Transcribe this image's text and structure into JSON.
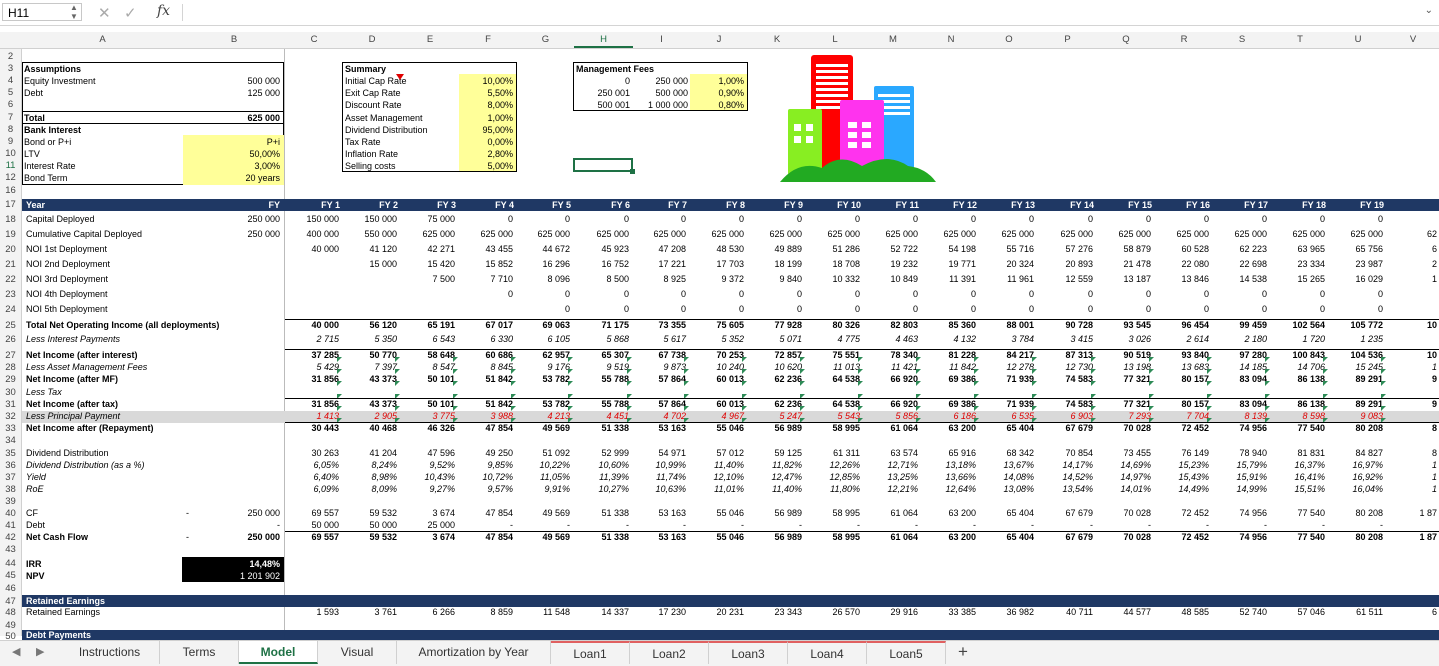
{
  "formula_bar": {
    "name_box": "H11",
    "fx": "fx"
  },
  "columns": [
    "A",
    "B",
    "C",
    "D",
    "E",
    "F",
    "G",
    "H",
    "I",
    "J",
    "K",
    "L",
    "M",
    "N",
    "O",
    "P",
    "Q",
    "R",
    "S",
    "T",
    "U",
    "V"
  ],
  "rows": [
    "2",
    "3",
    "4",
    "5",
    "6",
    "7",
    "8",
    "9",
    "10",
    "11",
    "12",
    "16",
    "17",
    "18",
    "19",
    "20",
    "21",
    "22",
    "23",
    "24",
    "25",
    "26",
    "27",
    "28",
    "29",
    "30",
    "31",
    "32",
    "33",
    "34",
    "35",
    "36",
    "37",
    "38",
    "39",
    "40",
    "41",
    "42",
    "43",
    "44",
    "45",
    "46",
    "47",
    "48",
    "49",
    "50"
  ],
  "assumptions": {
    "title": "Assumptions",
    "equity_label": "Equity Investment",
    "equity": "500 000",
    "debt_label": "Debt",
    "debt": "125 000",
    "total_label": "Total",
    "total": "625 000",
    "bank_label": "Bank Interest",
    "bond_label": "Bond or P+i",
    "bond": "P+i",
    "ltv_label": "LTV",
    "ltv": "50,00%",
    "rate_label": "Interest Rate",
    "rate": "3,00%",
    "term_label": "Bond Term",
    "term": "20 years"
  },
  "summary": {
    "title": "Summary",
    "items": [
      [
        "Initial Cap Rate",
        "10,00%"
      ],
      [
        "Exit Cap Rate",
        "5,50%"
      ],
      [
        "Discount Rate",
        "8,00%"
      ],
      [
        "Asset Management",
        "1,00%"
      ],
      [
        "Dividend Distribution",
        "95,00%"
      ],
      [
        "Tax Rate",
        "0,00%"
      ],
      [
        "Inflation Rate",
        "2,80%"
      ],
      [
        "Selling costs",
        "5,00%"
      ]
    ]
  },
  "management_fees": {
    "title": "Management Fees",
    "rows": [
      [
        "0",
        "250 000",
        "1,00%"
      ],
      [
        "250 001",
        "500 000",
        "0,90%"
      ],
      [
        "500 001",
        "1 000 000",
        "0,80%"
      ]
    ]
  },
  "year_header": {
    "label": "Year",
    "col_b": "FY",
    "years": [
      "FY 1",
      "FY 2",
      "FY 3",
      "FY 4",
      "FY 5",
      "FY 6",
      "FY 7",
      "FY 8",
      "FY 9",
      "FY 10",
      "FY 11",
      "FY 12",
      "FY 13",
      "FY 14",
      "FY 15",
      "FY 16",
      "FY 17",
      "FY 18",
      "FY 19"
    ]
  },
  "table": [
    {
      "row": "18",
      "label": "Capital Deployed",
      "b": "250 000",
      "v": [
        "150 000",
        "150 000",
        "75 000",
        "0",
        "0",
        "0",
        "0",
        "0",
        "0",
        "0",
        "0",
        "0",
        "0",
        "0",
        "0",
        "0",
        "0",
        "0",
        "0"
      ]
    },
    {
      "row": "19",
      "label": "Cumulative Capital Deployed",
      "b": "250 000",
      "v": [
        "400 000",
        "550 000",
        "625 000",
        "625 000",
        "625 000",
        "625 000",
        "625 000",
        "625 000",
        "625 000",
        "625 000",
        "625 000",
        "625 000",
        "625 000",
        "625 000",
        "625 000",
        "625 000",
        "625 000",
        "625 000",
        "625 000"
      ],
      "tail": "62"
    },
    {
      "row": "20",
      "label": "NOI 1st Deployment",
      "b": "",
      "v": [
        "40 000",
        "41 120",
        "42 271",
        "43 455",
        "44 672",
        "45 923",
        "47 208",
        "48 530",
        "49 889",
        "51 286",
        "52 722",
        "54 198",
        "55 716",
        "57 276",
        "58 879",
        "60 528",
        "62 223",
        "63 965",
        "65 756"
      ],
      "tail": "6"
    },
    {
      "row": "21",
      "label": "NOI 2nd Deployment",
      "b": "",
      "v": [
        "",
        "15 000",
        "15 420",
        "15 852",
        "16 296",
        "16 752",
        "17 221",
        "17 703",
        "18 199",
        "18 708",
        "19 232",
        "19 771",
        "20 324",
        "20 893",
        "21 478",
        "22 080",
        "22 698",
        "23 334",
        "23 987"
      ],
      "tail": "2"
    },
    {
      "row": "22",
      "label": "NOI 3rd Deployment",
      "b": "",
      "v": [
        "",
        "",
        "7 500",
        "7 710",
        "8 096",
        "8 500",
        "8 925",
        "9 372",
        "9 840",
        "10 332",
        "10 849",
        "11 391",
        "11 961",
        "12 559",
        "13 187",
        "13 846",
        "14 538",
        "15 265",
        "16 029"
      ],
      "tail": "1"
    },
    {
      "row": "23",
      "label": "NOI 4th Deployment",
      "b": "",
      "v": [
        "",
        "",
        "",
        "0",
        "0",
        "0",
        "0",
        "0",
        "0",
        "0",
        "0",
        "0",
        "0",
        "0",
        "0",
        "0",
        "0",
        "0",
        "0"
      ]
    },
    {
      "row": "24",
      "label": "NOI 5th Deployment",
      "b": "",
      "v": [
        "",
        "",
        "",
        "",
        "0",
        "0",
        "0",
        "0",
        "0",
        "0",
        "0",
        "0",
        "0",
        "0",
        "0",
        "0",
        "0",
        "0",
        "0"
      ]
    },
    {
      "row": "25",
      "label": "Total Net Operating Income (all deployments)",
      "b": "",
      "bold": true,
      "v": [
        "40 000",
        "56 120",
        "65 191",
        "67 017",
        "69 063",
        "71 175",
        "73 355",
        "75 605",
        "77 928",
        "80 326",
        "82 803",
        "85 360",
        "88 001",
        "90 728",
        "93 545",
        "96 454",
        "99 459",
        "102 564",
        "105 772"
      ],
      "tail": "10"
    },
    {
      "row": "26",
      "label": "Less Interest Payments",
      "b": "",
      "italic": true,
      "v": [
        "2 715",
        "5 350",
        "6 543",
        "6 330",
        "6 105",
        "5 868",
        "5 617",
        "5 352",
        "5 071",
        "4 775",
        "4 463",
        "4 132",
        "3 784",
        "3 415",
        "3 026",
        "2 614",
        "2 180",
        "1 720",
        "1 235"
      ]
    },
    {
      "row": "27",
      "label": "Net Income (after interest)",
      "b": "",
      "bold": true,
      "v": [
        "37 285",
        "50 770",
        "58 648",
        "60 686",
        "62 957",
        "65 307",
        "67 738",
        "70 253",
        "72 857",
        "75 551",
        "78 340",
        "81 228",
        "84 217",
        "87 313",
        "90 519",
        "93 840",
        "97 280",
        "100 843",
        "104 536"
      ],
      "tail": "10"
    },
    {
      "row": "28",
      "label": "Less Asset Management Fees",
      "b": "",
      "italic": true,
      "v": [
        "5 429",
        "7 397",
        "8 547",
        "8 845",
        "9 176",
        "9 519",
        "9 873",
        "10 240",
        "10 620",
        "11 013",
        "11 421",
        "11 842",
        "12 278",
        "12 730",
        "13 198",
        "13 683",
        "14 185",
        "14 706",
        "15 245"
      ],
      "tail": "1"
    },
    {
      "row": "29",
      "label": "Net Income (after MF)",
      "b": "",
      "bold": true,
      "v": [
        "31 856",
        "43 373",
        "50 101",
        "51 842",
        "53 782",
        "55 788",
        "57 864",
        "60 013",
        "62 236",
        "64 538",
        "66 920",
        "69 386",
        "71 939",
        "74 583",
        "77 321",
        "80 157",
        "83 094",
        "86 138",
        "89 291"
      ],
      "tail": "9"
    },
    {
      "row": "30",
      "label": "Less Tax",
      "b": "",
      "italic": true,
      "v": [
        "",
        "",
        "",
        "",
        "",
        "",
        "",
        "",
        "",
        "",
        "",
        "",
        "",
        "",
        "",
        "",
        "",
        "",
        ""
      ]
    },
    {
      "row": "31",
      "label": "Net Income (after tax)",
      "b": "",
      "bold": true,
      "v": [
        "31 856",
        "43 373",
        "50 101",
        "51 842",
        "53 782",
        "55 788",
        "57 864",
        "60 013",
        "62 236",
        "64 538",
        "66 920",
        "69 386",
        "71 939",
        "74 583",
        "77 321",
        "80 157",
        "83 094",
        "86 138",
        "89 291"
      ],
      "tail": "9"
    },
    {
      "row": "32",
      "label": "Less Principal Payment",
      "b": "",
      "italic": true,
      "red": true,
      "v": [
        "1 413",
        "2 905",
        "3 775",
        "3 988",
        "4 213",
        "4 451",
        "4 702",
        "4 967",
        "5 247",
        "5 543",
        "5 856",
        "6 186",
        "6 535",
        "6 903",
        "7 293",
        "7 704",
        "8 139",
        "8 598",
        "9 083"
      ]
    },
    {
      "row": "33",
      "label": "Net Income after (Repayment)",
      "b": "",
      "bold": true,
      "v": [
        "30 443",
        "40 468",
        "46 326",
        "47 854",
        "49 569",
        "51 338",
        "53 163",
        "55 046",
        "56 989",
        "58 995",
        "61 064",
        "63 200",
        "65 404",
        "67 679",
        "70 028",
        "72 452",
        "74 956",
        "77 540",
        "80 208"
      ],
      "tail": "8"
    },
    {
      "row": "35",
      "label": "Dividend Distribution",
      "b": "",
      "v": [
        "30 263",
        "41 204",
        "47 596",
        "49 250",
        "51 092",
        "52 999",
        "54 971",
        "57 012",
        "59 125",
        "61 311",
        "63 574",
        "65 916",
        "68 342",
        "70 854",
        "73 455",
        "76 149",
        "78 940",
        "81 831",
        "84 827"
      ],
      "tail": "8"
    },
    {
      "row": "36",
      "label": "Dividend Distribution (as a %)",
      "b": "",
      "italic": true,
      "v": [
        "6,05%",
        "8,24%",
        "9,52%",
        "9,85%",
        "10,22%",
        "10,60%",
        "10,99%",
        "11,40%",
        "11,82%",
        "12,26%",
        "12,71%",
        "13,18%",
        "13,67%",
        "14,17%",
        "14,69%",
        "15,23%",
        "15,79%",
        "16,37%",
        "16,97%"
      ],
      "tail": "1"
    },
    {
      "row": "37",
      "label": "Yield",
      "b": "",
      "italic": true,
      "v": [
        "6,40%",
        "8,98%",
        "10,43%",
        "10,72%",
        "11,05%",
        "11,39%",
        "11,74%",
        "12,10%",
        "12,47%",
        "12,85%",
        "13,25%",
        "13,66%",
        "14,08%",
        "14,52%",
        "14,97%",
        "15,43%",
        "15,91%",
        "16,41%",
        "16,92%"
      ],
      "tail": "1"
    },
    {
      "row": "38",
      "label": "RoE",
      "b": "",
      "italic": true,
      "v": [
        "6,09%",
        "8,09%",
        "9,27%",
        "9,57%",
        "9,91%",
        "10,27%",
        "10,63%",
        "11,01%",
        "11,40%",
        "11,80%",
        "12,21%",
        "12,64%",
        "13,08%",
        "13,54%",
        "14,01%",
        "14,49%",
        "14,99%",
        "15,51%",
        "16,04%"
      ],
      "tail": "1"
    },
    {
      "row": "40",
      "label": "CF",
      "b": "250 000",
      "bpre": "-",
      "v": [
        "69 557",
        "59 532",
        "3 674",
        "47 854",
        "49 569",
        "51 338",
        "53 163",
        "55 046",
        "56 989",
        "58 995",
        "61 064",
        "63 200",
        "65 404",
        "67 679",
        "70 028",
        "72 452",
        "74 956",
        "77 540",
        "80 208"
      ],
      "tail": "1 87"
    },
    {
      "row": "41",
      "label": "Debt",
      "b": "-",
      "v": [
        "50 000",
        "50 000",
        "25 000",
        "-",
        "-",
        "-",
        "-",
        "-",
        "-",
        "-",
        "-",
        "-",
        "-",
        "-",
        "-",
        "-",
        "-",
        "-",
        "-"
      ]
    },
    {
      "row": "42",
      "label": "Net Cash Flow",
      "b": "250 000",
      "bpre": "-",
      "bold": true,
      "v": [
        "69 557",
        "59 532",
        "3 674",
        "47 854",
        "49 569",
        "51 338",
        "53 163",
        "55 046",
        "56 989",
        "58 995",
        "61 064",
        "63 200",
        "65 404",
        "67 679",
        "70 028",
        "72 452",
        "74 956",
        "77 540",
        "80 208"
      ],
      "tail": "1 87"
    },
    {
      "row": "48",
      "label": "Retained Earnings",
      "b": "",
      "v": [
        "1 593",
        "3 761",
        "6 266",
        "8 859",
        "11 548",
        "14 337",
        "17 230",
        "20 231",
        "23 343",
        "26 570",
        "29 916",
        "33 385",
        "36 982",
        "40 711",
        "44 577",
        "48 585",
        "52 740",
        "57 046",
        "61 511"
      ],
      "tail": "6"
    }
  ],
  "irr": {
    "irr_label": "IRR",
    "irr": "14,48%",
    "npv_label": "NPV",
    "npv": "1 201 902"
  },
  "sections": {
    "retained": "Retained Earnings",
    "debt": "Debt Payments"
  },
  "tabs": [
    "Instructions",
    "Terms",
    "Model",
    "Visual",
    "Amortization by Year",
    "Loan1",
    "Loan2",
    "Loan3",
    "Loan4",
    "Loan5"
  ],
  "active_tab": "Model",
  "colors": {
    "header_band": "#1f3864",
    "input_yellow": "#ffff99",
    "active_green": "#1e7145",
    "loan_tab_accent": "#e06060"
  }
}
